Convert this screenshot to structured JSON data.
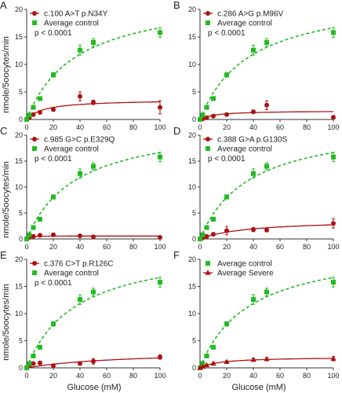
{
  "y_axis_label": "nmole/5oocytes/min",
  "x_axis_label": "Glucose (mM)",
  "colors": {
    "control": "#22bb22",
    "mutant": "#b01010",
    "axis": "#333333"
  },
  "chart_data": [
    {
      "panel": "A",
      "type": "scatter",
      "xlim": [
        0,
        100
      ],
      "ylim": [
        0,
        20
      ],
      "xticks": [
        0,
        20,
        40,
        60,
        80,
        100
      ],
      "yticks": [
        0,
        5,
        10,
        15,
        20
      ],
      "legend": [
        "c.100 A>T  p.N34Y",
        "Average control"
      ],
      "annotation": "p < 0.0001",
      "series": [
        {
          "name": "c.100 A>T  p.N34Y",
          "marker": "circle",
          "fit": true,
          "x": [
            0,
            2,
            5,
            10,
            20,
            40,
            50,
            100
          ],
          "y": [
            0,
            0.3,
            0.9,
            1.3,
            1.8,
            4.2,
            3.1,
            2.2
          ],
          "err": [
            0,
            0.1,
            0.2,
            0.3,
            0.3,
            0.8,
            0.4,
            1.2
          ]
        },
        {
          "name": "Average control",
          "marker": "square",
          "fit": true,
          "x": [
            0,
            2,
            5,
            10,
            20,
            40,
            50,
            100
          ],
          "y": [
            0,
            0.8,
            2.2,
            3.8,
            8.1,
            12.6,
            14,
            15.8
          ],
          "err": [
            0,
            0.1,
            0.2,
            0.3,
            0.4,
            0.9,
            0.7,
            0.9
          ]
        }
      ]
    },
    {
      "panel": "B",
      "type": "scatter",
      "xlim": [
        0,
        100
      ],
      "ylim": [
        0,
        20
      ],
      "xticks": [
        0,
        20,
        40,
        60,
        80,
        100
      ],
      "yticks": [
        0,
        5,
        10,
        15,
        20
      ],
      "legend": [
        "c.286 A>G  p.M96V",
        "Average control"
      ],
      "annotation": "p < 0.0001",
      "series": [
        {
          "name": "c.286 A>G  p.M96V",
          "marker": "circle",
          "fit": true,
          "x": [
            0,
            2,
            5,
            10,
            20,
            40,
            50,
            100
          ],
          "y": [
            0,
            0.1,
            0.3,
            0.6,
            0.9,
            1.4,
            2.6,
            0.4
          ],
          "err": [
            0,
            0.05,
            0.1,
            0.2,
            0.2,
            0.3,
            0.8,
            0.3
          ]
        },
        {
          "name": "Average control",
          "marker": "square",
          "fit": true,
          "x": [
            0,
            2,
            5,
            10,
            20,
            40,
            50,
            100
          ],
          "y": [
            0,
            0.8,
            2.2,
            3.8,
            8.1,
            12.6,
            14,
            15.8
          ],
          "err": [
            0,
            0.1,
            0.2,
            0.3,
            0.4,
            0.9,
            0.7,
            0.9
          ]
        }
      ]
    },
    {
      "panel": "C",
      "type": "scatter",
      "xlim": [
        0,
        100
      ],
      "ylim": [
        0,
        20
      ],
      "xticks": [
        0,
        20,
        40,
        60,
        80,
        100
      ],
      "yticks": [
        0,
        5,
        10,
        15,
        20
      ],
      "legend": [
        "c.985 G>C  p.E329Q",
        "Average control"
      ],
      "annotation": "p < 0.0001",
      "series": [
        {
          "name": "c.985 G>C  p.E329Q",
          "marker": "circle",
          "fit": true,
          "x": [
            0,
            2,
            5,
            10,
            20,
            40,
            50,
            100
          ],
          "y": [
            0,
            0.3,
            0.5,
            0.7,
            0.8,
            0.6,
            0.4,
            0.3
          ],
          "err": [
            0,
            0.1,
            0.1,
            0.2,
            0.3,
            0.2,
            0.2,
            0.2
          ]
        },
        {
          "name": "Average control",
          "marker": "square",
          "fit": true,
          "x": [
            0,
            2,
            5,
            10,
            20,
            40,
            50,
            100
          ],
          "y": [
            0,
            0.8,
            2.2,
            3.8,
            8.1,
            12.6,
            14,
            15.8
          ],
          "err": [
            0,
            0.1,
            0.2,
            0.3,
            0.4,
            0.9,
            0.7,
            0.9
          ]
        }
      ]
    },
    {
      "panel": "D",
      "type": "scatter",
      "xlim": [
        0,
        100
      ],
      "ylim": [
        0,
        20
      ],
      "xticks": [
        0,
        20,
        40,
        60,
        80,
        100
      ],
      "yticks": [
        0,
        5,
        10,
        15,
        20
      ],
      "legend": [
        "c.388 G>A  p.G130S",
        "Average control"
      ],
      "annotation": "p < 0.0001",
      "series": [
        {
          "name": "c.388 G>A  p.G130S",
          "marker": "circle",
          "fit": true,
          "x": [
            0,
            2,
            5,
            10,
            20,
            40,
            50,
            100
          ],
          "y": [
            0,
            0.2,
            0.5,
            0.9,
            1.6,
            1.8,
            1.7,
            3.0
          ],
          "err": [
            0,
            0.1,
            0.2,
            0.3,
            0.8,
            0.4,
            0.3,
            0.9
          ]
        },
        {
          "name": "Average control",
          "marker": "square",
          "fit": true,
          "x": [
            0,
            2,
            5,
            10,
            20,
            40,
            50,
            100
          ],
          "y": [
            0,
            0.8,
            2.2,
            3.8,
            8.1,
            12.6,
            14,
            15.8
          ],
          "err": [
            0,
            0.1,
            0.2,
            0.3,
            0.4,
            0.9,
            0.7,
            0.9
          ]
        }
      ]
    },
    {
      "panel": "E",
      "type": "scatter",
      "xlim": [
        0,
        100
      ],
      "ylim": [
        0,
        20
      ],
      "xticks": [
        0,
        20,
        40,
        60,
        80,
        100
      ],
      "yticks": [
        0,
        5,
        10,
        15,
        20
      ],
      "legend": [
        "c.376 C>T  p.R126C",
        "Average control"
      ],
      "annotation": "p < 0.0001",
      "series": [
        {
          "name": "c.376 C>T  p.R126C",
          "marker": "circle",
          "fit": true,
          "x": [
            0,
            2,
            5,
            10,
            20,
            40,
            50,
            100
          ],
          "y": [
            0,
            0.4,
            0.8,
            0.9,
            0.4,
            0.8,
            1.2,
            2.0
          ],
          "err": [
            0,
            0.1,
            0.2,
            0.3,
            0.3,
            0.3,
            0.5,
            0.4
          ]
        },
        {
          "name": "Average control",
          "marker": "square",
          "fit": true,
          "x": [
            0,
            2,
            5,
            10,
            20,
            40,
            50,
            100
          ],
          "y": [
            0,
            0.8,
            2.2,
            3.8,
            8.1,
            12.6,
            14,
            15.8
          ],
          "err": [
            0,
            0.1,
            0.2,
            0.3,
            0.4,
            0.9,
            0.7,
            0.9
          ]
        }
      ]
    },
    {
      "panel": "F",
      "type": "scatter",
      "xlim": [
        0,
        100
      ],
      "ylim": [
        0,
        20
      ],
      "xticks": [
        0,
        20,
        40,
        60,
        80,
        100
      ],
      "yticks": [
        0,
        5,
        10,
        15,
        20
      ],
      "legend": [
        "Average control",
        "Average Severe"
      ],
      "annotation": "",
      "series": [
        {
          "name": "Average control",
          "marker": "square",
          "fit": true,
          "x": [
            0,
            2,
            5,
            10,
            20,
            40,
            50,
            100
          ],
          "y": [
            0,
            0.8,
            2.2,
            3.8,
            8.1,
            12.6,
            14,
            15.8
          ],
          "err": [
            0,
            0.1,
            0.2,
            0.3,
            0.4,
            0.9,
            0.7,
            0.9
          ]
        },
        {
          "name": "Average Severe",
          "marker": "triangle",
          "fit": true,
          "x": [
            0,
            2,
            5,
            10,
            20,
            40,
            50,
            100
          ],
          "y": [
            0,
            0.2,
            0.5,
            0.8,
            1.1,
            1.5,
            1.6,
            1.7
          ],
          "err": [
            0,
            0.1,
            0.1,
            0.2,
            0.2,
            0.3,
            0.3,
            0.4
          ]
        }
      ]
    }
  ]
}
